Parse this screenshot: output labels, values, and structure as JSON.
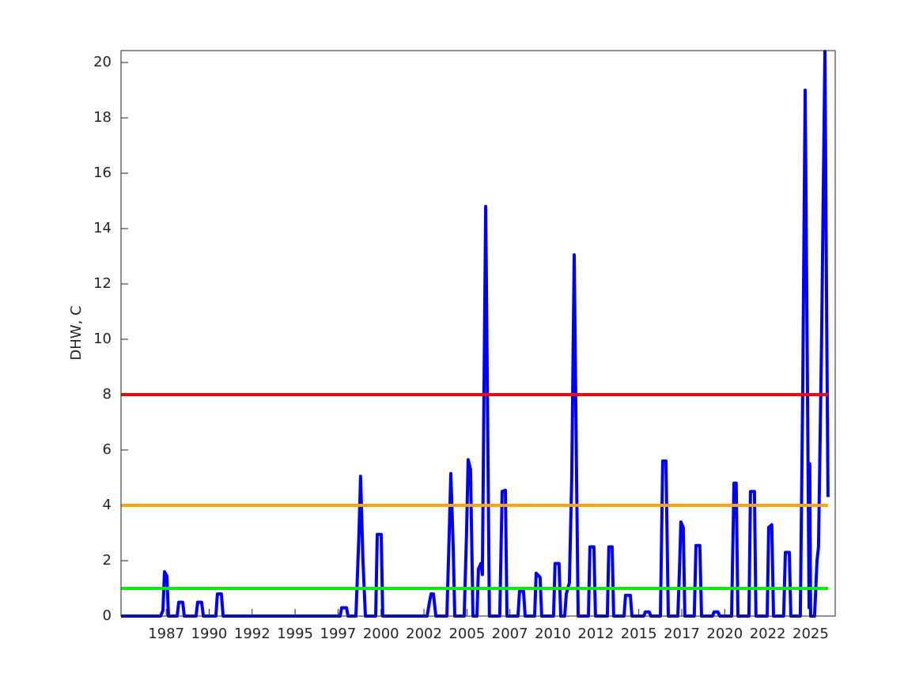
{
  "chart_data": {
    "type": "line",
    "y_label": "DHW, C",
    "color": "#0000ff",
    "x": [
      1984.87,
      1987.17,
      1987.31,
      1987.4,
      1987.54,
      1987.63,
      1988.14,
      1988.23,
      1988.46,
      1988.55,
      1989.24,
      1989.33,
      1989.56,
      1989.66,
      1990.39,
      1990.48,
      1990.71,
      1990.81,
      1997.62,
      1997.71,
      1997.99,
      1998.08,
      1998.54,
      1998.72,
      1998.81,
      1998.95,
      1999.09,
      1999.69,
      1999.78,
      2000.01,
      2000.1,
      2002.68,
      2002.82,
      2002.91,
      2003.05,
      2003.19,
      2003.83,
      2003.97,
      2004.06,
      2004.2,
      2004.29,
      2004.84,
      2004.98,
      2005.07,
      2005.21,
      2005.35,
      2005.58,
      2005.67,
      2005.81,
      2005.9,
      2005.99,
      2006.09,
      2006.22,
      2006.31,
      2006.91,
      2007.05,
      2007.24,
      2007.33,
      2007.97,
      2008.06,
      2008.29,
      2008.39,
      2008.94,
      2009.03,
      2009.26,
      2009.35,
      2010.04,
      2010.13,
      2010.36,
      2010.46,
      2010.69,
      2010.78,
      2010.96,
      2011.1,
      2011.24,
      2011.38,
      2011.47,
      2012.07,
      2012.16,
      2012.39,
      2012.48,
      2013.17,
      2013.26,
      2013.45,
      2013.54,
      2014.14,
      2014.23,
      2014.51,
      2014.6,
      2015.29,
      2015.38,
      2015.61,
      2015.7,
      2016.26,
      2016.39,
      2016.58,
      2016.72,
      2017.27,
      2017.36,
      2017.45,
      2017.59,
      2017.68,
      2018.23,
      2018.33,
      2018.55,
      2018.65,
      2019.29,
      2019.38,
      2019.61,
      2019.71,
      2020.4,
      2020.54,
      2020.67,
      2020.77,
      2021.41,
      2021.5,
      2021.73,
      2021.82,
      2022.47,
      2022.56,
      2022.74,
      2022.84,
      2023.43,
      2023.53,
      2023.76,
      2023.85,
      2024.4,
      2024.54,
      2024.68,
      2024.82,
      2024.91,
      2024.95,
      2025.0,
      2025.23,
      2025.37,
      2025.46,
      2025.64,
      2025.83,
      2025.92,
      2026.01
    ],
    "values": [
      0,
      0,
      0.2,
      1.6,
      1.45,
      0,
      0,
      0.5,
      0.5,
      0,
      0,
      0.5,
      0.5,
      0,
      0,
      0.8,
      0.8,
      0,
      0,
      0.3,
      0.3,
      0,
      0,
      3,
      5.05,
      2,
      0,
      0,
      2.95,
      2.95,
      0,
      0,
      0.5,
      0.8,
      0.8,
      0,
      0,
      3,
      5.15,
      2.5,
      0,
      0,
      3,
      5.65,
      5.3,
      0,
      0,
      1.7,
      1.9,
      1.5,
      8,
      14.8,
      6,
      0,
      0,
      4.5,
      4.55,
      0,
      0,
      0.9,
      0.9,
      0,
      0,
      1.55,
      1.4,
      0,
      0,
      1.9,
      1.9,
      0,
      0,
      0.8,
      1.2,
      5,
      13.05,
      5,
      0,
      0,
      2.5,
      2.5,
      0,
      0,
      2.5,
      2.5,
      0,
      0,
      0.75,
      0.75,
      0,
      0,
      0.15,
      0.15,
      0,
      0,
      5.6,
      5.6,
      0,
      0,
      1.5,
      3.4,
      3.2,
      0,
      0,
      2.55,
      2.55,
      0,
      0,
      0.15,
      0.15,
      0,
      0,
      4.8,
      4.8,
      0,
      0,
      4.5,
      4.5,
      0,
      0,
      3.2,
      3.3,
      0,
      0,
      2.3,
      2.3,
      0,
      0,
      8,
      19,
      8,
      0.3,
      5.5,
      0,
      0,
      2,
      2.5,
      10,
      20.4,
      12,
      4.3
    ],
    "hlines": [
      {
        "value": 8,
        "color": "#ff0000"
      },
      {
        "value": 4,
        "color": "#ffa500"
      },
      {
        "value": 1,
        "color": "#00ee00"
      }
    ],
    "xlim": [
      1984.87,
      2026.43
    ],
    "ylim": [
      0,
      20.43
    ],
    "yticks": [
      0,
      2,
      4,
      6,
      8,
      10,
      12,
      14,
      16,
      18,
      20
    ],
    "xticks": [
      {
        "value": 1987.5,
        "label": "1987"
      },
      {
        "value": 1990,
        "label": "1990"
      },
      {
        "value": 1992.5,
        "label": "1992"
      },
      {
        "value": 1995,
        "label": "1995"
      },
      {
        "value": 1997.5,
        "label": "1997"
      },
      {
        "value": 2000,
        "label": "2000"
      },
      {
        "value": 2002.5,
        "label": "2002"
      },
      {
        "value": 2005,
        "label": "2005"
      },
      {
        "value": 2007.5,
        "label": "2007"
      },
      {
        "value": 2010,
        "label": "2010"
      },
      {
        "value": 2012.5,
        "label": "2012"
      },
      {
        "value": 2015,
        "label": "2015"
      },
      {
        "value": 2017.5,
        "label": "2017"
      },
      {
        "value": 2020,
        "label": "2020"
      },
      {
        "value": 2022.5,
        "label": "2022"
      },
      {
        "value": 2025,
        "label": "2025"
      }
    ]
  }
}
